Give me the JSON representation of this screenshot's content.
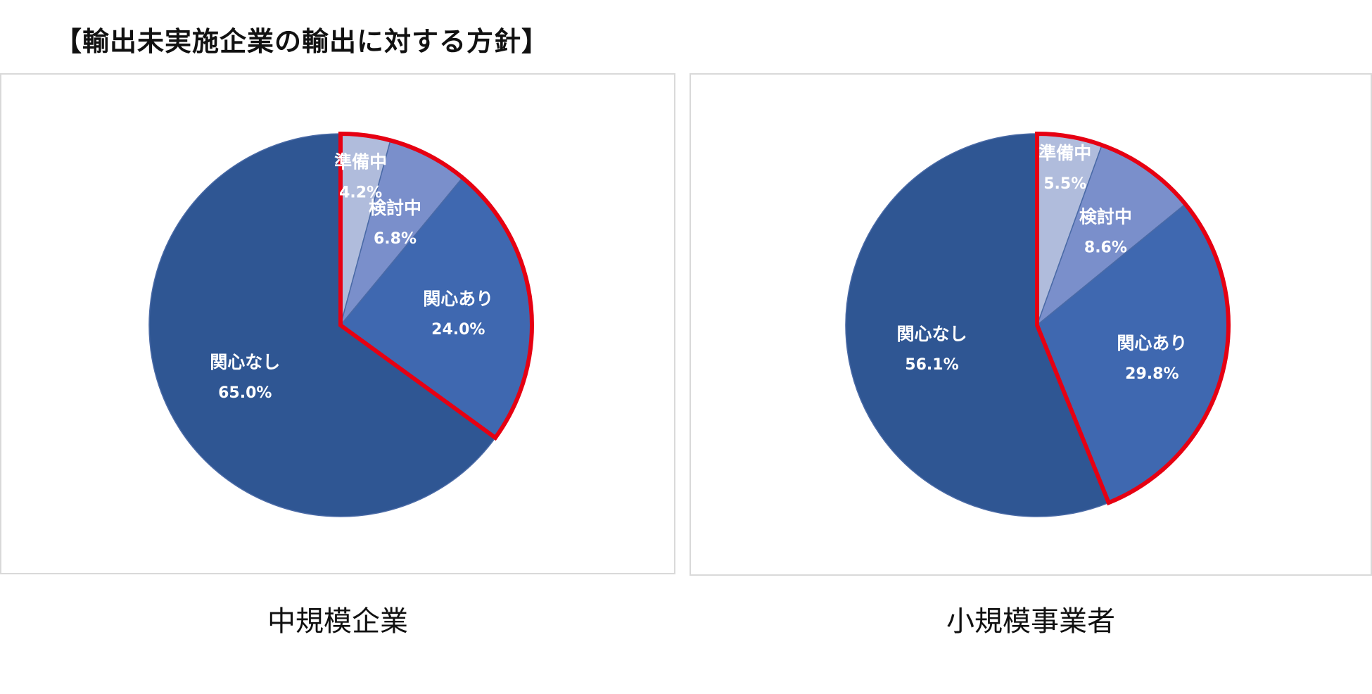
{
  "title": "【輸出未実施企業の輸出に対する方針】",
  "chart_data": [
    {
      "type": "pie",
      "caption": "中規模企業",
      "slices": [
        {
          "label": "準備中",
          "value": 4.2,
          "display": "4.2%",
          "color": "#b0bcdc"
        },
        {
          "label": "検討中",
          "value": 6.8,
          "display": "6.8%",
          "color": "#7a8fcb"
        },
        {
          "label": "関心あり",
          "value": 24.0,
          "display": "24.0%",
          "color": "#3f68b0"
        },
        {
          "label": "関心なし",
          "value": 65.0,
          "display": "65.0%",
          "color": "#2f5693"
        }
      ],
      "highlight": {
        "slices": [
          "準備中",
          "検討中",
          "関心あり"
        ],
        "color": "#e60012"
      }
    },
    {
      "type": "pie",
      "caption": "小規模事業者",
      "slices": [
        {
          "label": "準備中",
          "value": 5.5,
          "display": "5.5%",
          "color": "#b0bcdc"
        },
        {
          "label": "検討中",
          "value": 8.6,
          "display": "8.6%",
          "color": "#7a8fcb"
        },
        {
          "label": "関心あり",
          "value": 29.8,
          "display": "29.8%",
          "color": "#3f68b0"
        },
        {
          "label": "関心なし",
          "value": 56.1,
          "display": "56.1%",
          "color": "#2f5693"
        }
      ],
      "highlight": {
        "slices": [
          "準備中",
          "検討中",
          "関心あり"
        ],
        "color": "#e60012"
      }
    }
  ]
}
